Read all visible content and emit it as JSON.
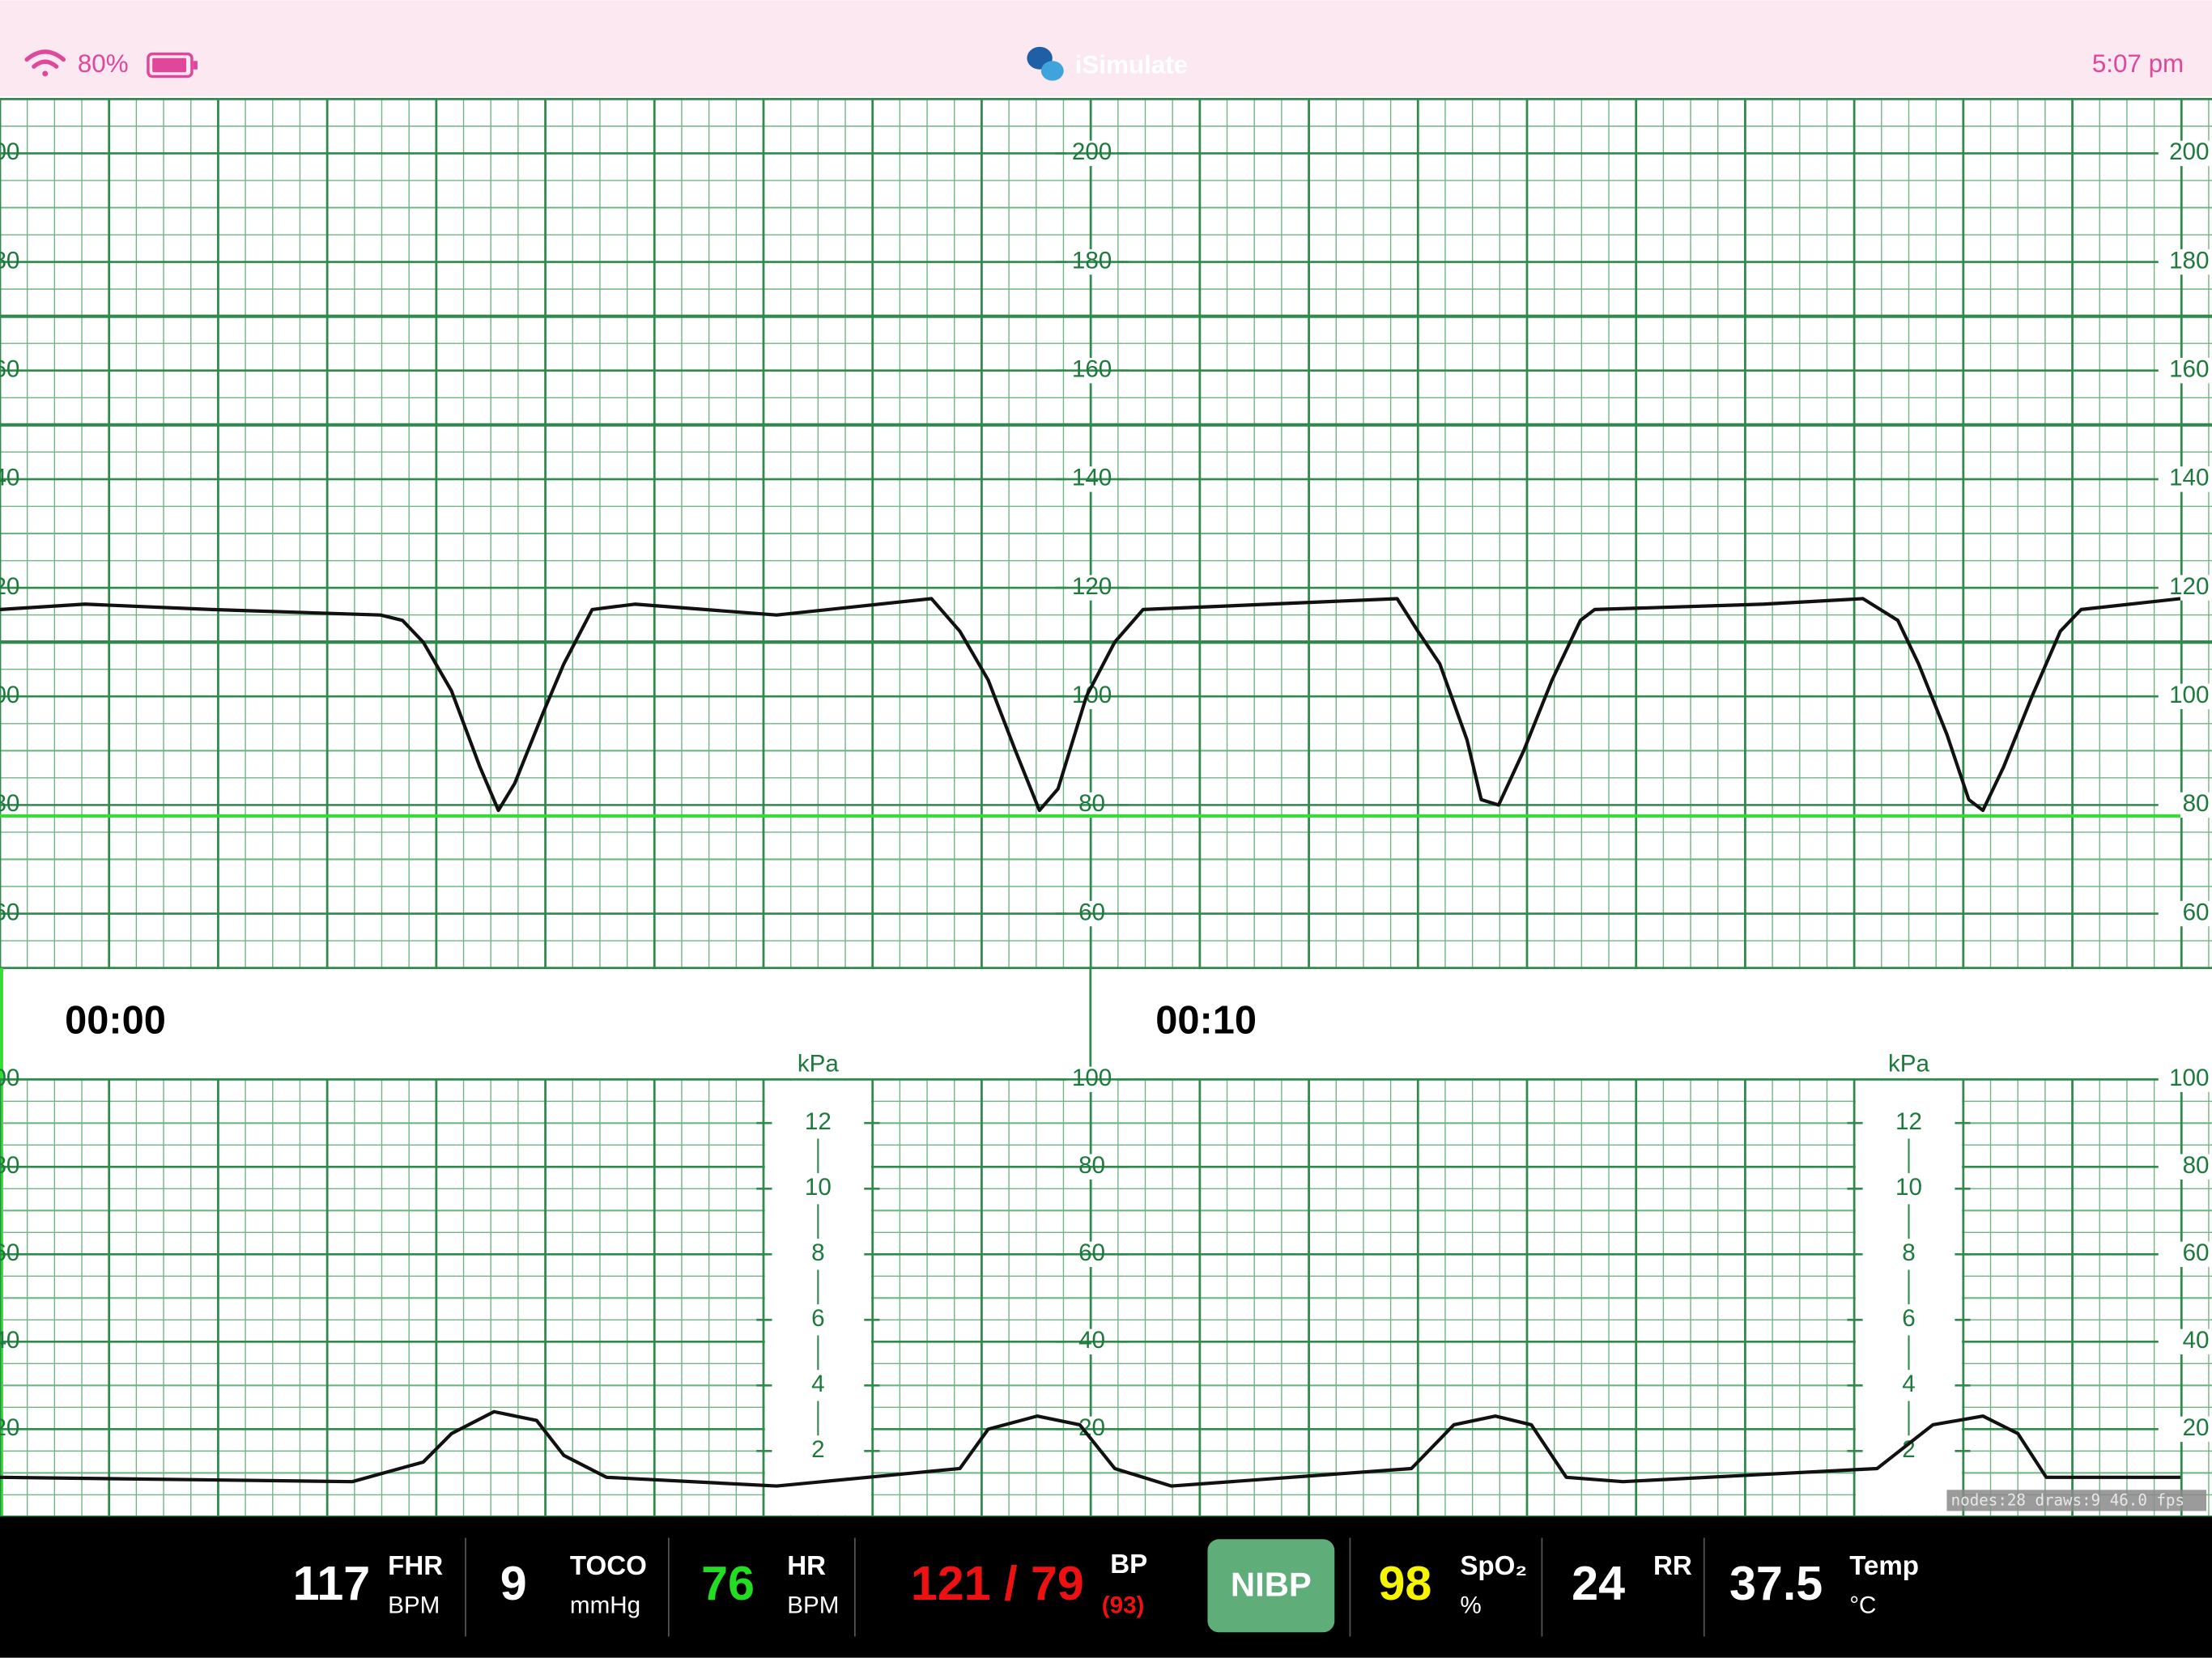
{
  "status_bar": {
    "battery": "80%",
    "app_name": "iSimulate",
    "time": "5:07 pm"
  },
  "fhr_chart": {
    "type": "line",
    "xlim": [
      0,
      20.28
    ],
    "ylim": [
      50,
      210
    ],
    "yticks": [
      60,
      80,
      100,
      120,
      140,
      160,
      180,
      200
    ],
    "bold_lines": [
      110,
      150,
      170
    ],
    "grid": true,
    "series": [
      {
        "color": "#111111",
        "x": [
          0,
          0.78,
          1.94,
          3.49,
          3.69,
          3.88,
          4.14,
          4.4,
          4.57,
          4.72,
          4.98,
          5.17,
          5.43,
          5.82,
          7.12,
          8.54,
          8.8,
          9.06,
          9.31,
          9.53,
          9.7,
          9.96,
          10.22,
          10.48,
          11.64,
          12.81,
          13.0,
          13.2,
          13.45,
          13.58,
          13.74,
          13.97,
          14.23,
          14.49,
          14.62,
          16.17,
          17.08,
          17.4,
          17.59,
          17.85,
          18.05,
          18.18,
          18.37,
          18.63,
          18.89,
          19.08,
          19.99
        ],
        "values": [
          116,
          117,
          116,
          115,
          114,
          110,
          101,
          87,
          79,
          84,
          97,
          106,
          116,
          117,
          115,
          118,
          112,
          103,
          90,
          79,
          83,
          100,
          110,
          116,
          117,
          118,
          112,
          106,
          92,
          81,
          80,
          90,
          103,
          114,
          116,
          117,
          118,
          114,
          106,
          93,
          81,
          79,
          87,
          100,
          112,
          116,
          118
        ]
      },
      {
        "color": "#33dd33",
        "x": [
          0,
          19.99
        ],
        "values": [
          78,
          78
        ]
      }
    ]
  },
  "toco_chart": {
    "type": "line",
    "xlim": [
      0,
      20.28
    ],
    "ylim": [
      0,
      100
    ],
    "yticks": [
      20,
      40,
      60,
      80,
      100
    ],
    "grid": true,
    "kpa_label": "kPa",
    "kpa_ticks": [
      2,
      4,
      6,
      8,
      10,
      12
    ],
    "series": [
      {
        "color": "#111111",
        "x": [
          0,
          3.23,
          3.88,
          4.14,
          4.53,
          4.92,
          5.17,
          5.56,
          7.12,
          8.8,
          9.06,
          9.51,
          9.9,
          10.22,
          10.74,
          12.94,
          13.33,
          13.71,
          14.04,
          14.36,
          14.88,
          17.21,
          17.72,
          18.18,
          18.5,
          18.76,
          19.99
        ],
        "values": [
          9,
          8,
          12.5,
          19,
          24,
          22,
          14,
          9,
          7,
          11,
          20,
          23,
          21,
          11,
          7,
          11,
          21,
          23,
          21,
          9,
          8,
          11,
          21,
          23,
          19,
          9,
          9
        ]
      }
    ]
  },
  "time_labels": [
    {
      "value": 0,
      "label": "00:00"
    },
    {
      "value": 10,
      "label": "00:10"
    }
  ],
  "vitals": {
    "fhr": {
      "value": 117,
      "label": "FHR",
      "unit": "BPM"
    },
    "toco": {
      "value": 9,
      "label": "TOCO",
      "unit": "mmHg"
    },
    "hr": {
      "value": 76,
      "label": "HR",
      "unit": "BPM"
    },
    "bp": {
      "value": "121 / 79",
      "label": "BP",
      "mean": "(93)"
    },
    "nibp_button": "NIBP",
    "spo2": {
      "value": 98,
      "label": "SpO₂",
      "unit": "%"
    },
    "rr": {
      "value": 24,
      "label": "RR"
    },
    "temp": {
      "value": 37.5,
      "label": "Temp",
      "unit": "°C"
    }
  },
  "debug": "nodes:28 draws:9  46.0 fps"
}
